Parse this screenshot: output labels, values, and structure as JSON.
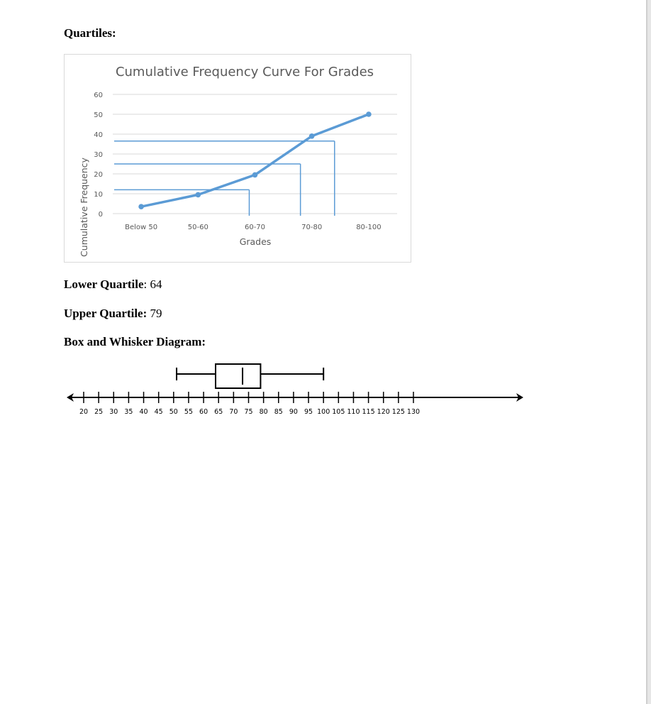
{
  "headings": {
    "quartiles": "Quartiles:",
    "box_whisker": "Box and Whisker Diagram:"
  },
  "results": {
    "lower_label": "Lower Quartile",
    "lower_value": ": 64",
    "upper_label": "Upper Quartile:",
    "upper_value": " 79"
  },
  "chart_data": [
    {
      "type": "line",
      "title": "Cumulative Frequency Curve For Grades",
      "xlabel": "Grades",
      "ylabel": "Cumulative Frequency",
      "categories": [
        "Below 50",
        "50-60",
        "60-70",
        "70-80",
        "80-100"
      ],
      "values": [
        3.5,
        9.5,
        19.5,
        39,
        50
      ],
      "ylim": [
        0,
        60
      ],
      "yticks": [
        0,
        10,
        20,
        30,
        40,
        50,
        60
      ],
      "grid": true,
      "color": "#5b9bd5",
      "reference_lines": [
        {
          "y": 12,
          "x_grade": 64
        },
        {
          "y": 25,
          "x_grade": 73
        },
        {
          "y": 36.5,
          "x_grade": 79
        }
      ]
    },
    {
      "type": "box",
      "min": 51,
      "q1": 64,
      "median": 73,
      "q3": 79,
      "max": 100,
      "xlim": [
        20,
        130
      ],
      "xticks": [
        20,
        25,
        30,
        35,
        40,
        45,
        50,
        55,
        60,
        65,
        70,
        75,
        80,
        85,
        90,
        95,
        100,
        105,
        110,
        115,
        120,
        125,
        130
      ]
    }
  ]
}
